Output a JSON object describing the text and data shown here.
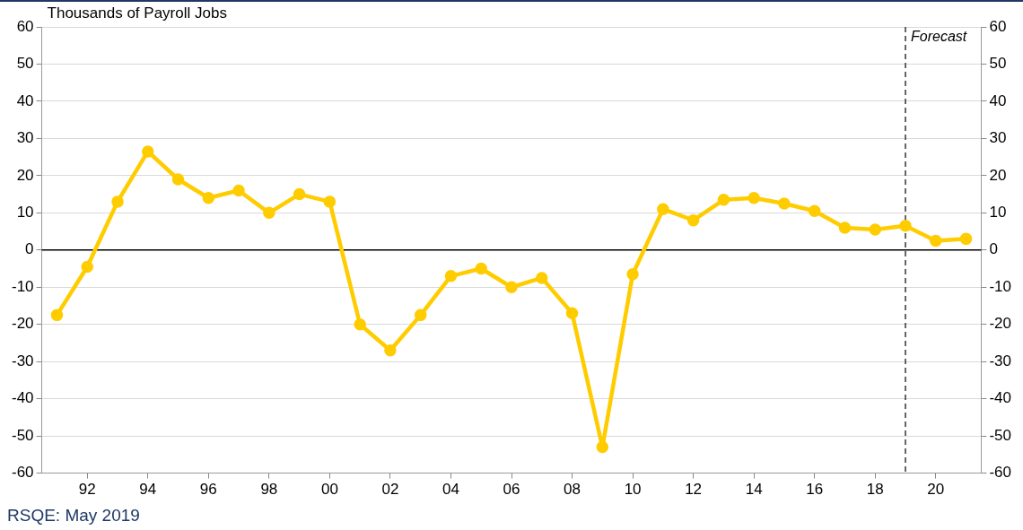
{
  "chart_data": {
    "type": "line",
    "title": "Thousands of Payroll Jobs",
    "x": [
      1991,
      1992,
      1993,
      1994,
      1995,
      1996,
      1997,
      1998,
      1999,
      2000,
      2001,
      2002,
      2003,
      2004,
      2005,
      2006,
      2007,
      2008,
      2009,
      2010,
      2011,
      2012,
      2013,
      2014,
      2015,
      2016,
      2017,
      2018,
      2019,
      2020,
      2021
    ],
    "series": [
      {
        "color": "#ffcc00",
        "values": [
          -17.5,
          -4.5,
          13,
          26.5,
          19,
          14,
          16,
          10,
          15,
          13,
          -20,
          -27,
          -17.5,
          -7,
          -5,
          -10,
          -7.5,
          -17,
          -53,
          -6.5,
          11,
          8,
          13.5,
          14,
          12.5,
          10.5,
          6,
          5.5,
          6.5,
          2.5,
          3
        ]
      }
    ],
    "xlim": [
      1990.5,
      2021.5
    ],
    "xticks": [
      {
        "value": 1992,
        "label": "92"
      },
      {
        "value": 1994,
        "label": "94"
      },
      {
        "value": 1996,
        "label": "96"
      },
      {
        "value": 1998,
        "label": "98"
      },
      {
        "value": 2000,
        "label": "00"
      },
      {
        "value": 2002,
        "label": "02"
      },
      {
        "value": 2004,
        "label": "04"
      },
      {
        "value": 2006,
        "label": "06"
      },
      {
        "value": 2008,
        "label": "08"
      },
      {
        "value": 2010,
        "label": "10"
      },
      {
        "value": 2012,
        "label": "12"
      },
      {
        "value": 2014,
        "label": "14"
      },
      {
        "value": 2016,
        "label": "16"
      },
      {
        "value": 2018,
        "label": "18"
      },
      {
        "value": 2020,
        "label": "20"
      }
    ],
    "ylim": [
      -60,
      60
    ],
    "yticks": [
      -60,
      -50,
      -40,
      -30,
      -20,
      -10,
      0,
      10,
      20,
      30,
      40,
      50,
      60
    ],
    "y2lim": [
      -60,
      60
    ],
    "y2ticks": [
      -60,
      -50,
      -40,
      -30,
      -20,
      -10,
      0,
      10,
      20,
      30,
      40,
      50,
      60
    ],
    "grid": "y",
    "marker": "circle",
    "line_style": "solid",
    "legend": false,
    "ref_lines": [
      {
        "axis": "y",
        "value": 0,
        "color": "#000000",
        "line_style": "solid"
      },
      {
        "axis": "x",
        "value": 2019,
        "label": "Forecast",
        "color": "#333333",
        "line_style": "dashed"
      }
    ],
    "annotations": [
      "RSQE: May 2019"
    ]
  }
}
